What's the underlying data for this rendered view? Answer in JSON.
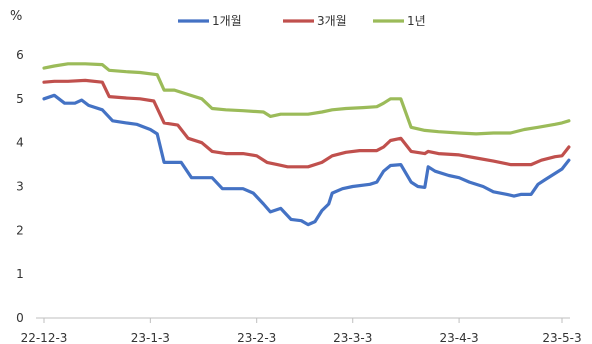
{
  "chart_data": {
    "type": "line",
    "unit_label": "%",
    "title": "",
    "xlabel": "",
    "ylabel": "",
    "ylim": [
      0,
      6
    ],
    "yticks": [
      "0",
      "1",
      "2",
      "3",
      "4",
      "5",
      "6"
    ],
    "x_tick_labels": [
      "22-12-3",
      "23-1-3",
      "23-2-3",
      "23-3-3",
      "23-4-3",
      "23-5-3"
    ],
    "x_tick_dates": [
      "2022-12-03",
      "2023-01-03",
      "2023-02-03",
      "2023-03-03",
      "2023-04-03",
      "2023-05-03"
    ],
    "grid": false,
    "legend_position": "top",
    "series": [
      {
        "name": "1개월",
        "color": "#4472c4",
        "points": [
          [
            "2022-12-03",
            5.0
          ],
          [
            "2022-12-06",
            5.08
          ],
          [
            "2022-12-09",
            4.9
          ],
          [
            "2022-12-12",
            4.9
          ],
          [
            "2022-12-14",
            4.97
          ],
          [
            "2022-12-16",
            4.85
          ],
          [
            "2022-12-20",
            4.75
          ],
          [
            "2022-12-23",
            4.5
          ],
          [
            "2022-12-27",
            4.45
          ],
          [
            "2022-12-30",
            4.42
          ],
          [
            "2023-01-03",
            4.3
          ],
          [
            "2023-01-05",
            4.2
          ],
          [
            "2023-01-07",
            3.55
          ],
          [
            "2023-01-12",
            3.55
          ],
          [
            "2023-01-15",
            3.2
          ],
          [
            "2023-01-18",
            3.2
          ],
          [
            "2023-01-21",
            3.2
          ],
          [
            "2023-01-24",
            2.95
          ],
          [
            "2023-01-30",
            2.95
          ],
          [
            "2023-02-02",
            2.85
          ],
          [
            "2023-02-05",
            2.6
          ],
          [
            "2023-02-07",
            2.42
          ],
          [
            "2023-02-10",
            2.5
          ],
          [
            "2023-02-13",
            2.25
          ],
          [
            "2023-02-16",
            2.22
          ],
          [
            "2023-02-18",
            2.13
          ],
          [
            "2023-02-20",
            2.2
          ],
          [
            "2023-02-22",
            2.45
          ],
          [
            "2023-02-24",
            2.6
          ],
          [
            "2023-02-25",
            2.85
          ],
          [
            "2023-02-28",
            2.95
          ],
          [
            "2023-03-03",
            3.0
          ],
          [
            "2023-03-08",
            3.05
          ],
          [
            "2023-03-10",
            3.1
          ],
          [
            "2023-03-12",
            3.35
          ],
          [
            "2023-03-14",
            3.48
          ],
          [
            "2023-03-17",
            3.5
          ],
          [
            "2023-03-20",
            3.1
          ],
          [
            "2023-03-22",
            3.0
          ],
          [
            "2023-03-24",
            2.98
          ],
          [
            "2023-03-25",
            3.45
          ],
          [
            "2023-03-27",
            3.35
          ],
          [
            "2023-03-31",
            3.25
          ],
          [
            "2023-04-03",
            3.2
          ],
          [
            "2023-04-06",
            3.1
          ],
          [
            "2023-04-10",
            3.0
          ],
          [
            "2023-04-13",
            2.88
          ],
          [
            "2023-04-17",
            2.82
          ],
          [
            "2023-04-19",
            2.78
          ],
          [
            "2023-04-21",
            2.82
          ],
          [
            "2023-04-24",
            2.82
          ],
          [
            "2023-04-26",
            3.05
          ],
          [
            "2023-04-28",
            3.15
          ],
          [
            "2023-05-01",
            3.3
          ],
          [
            "2023-05-03",
            3.4
          ],
          [
            "2023-05-05",
            3.6
          ]
        ]
      },
      {
        "name": "3개월",
        "color": "#c0504d",
        "points": [
          [
            "2022-12-03",
            5.38
          ],
          [
            "2022-12-06",
            5.4
          ],
          [
            "2022-12-10",
            5.4
          ],
          [
            "2022-12-15",
            5.42
          ],
          [
            "2022-12-20",
            5.38
          ],
          [
            "2022-12-22",
            5.05
          ],
          [
            "2022-12-27",
            5.02
          ],
          [
            "2022-12-31",
            5.0
          ],
          [
            "2023-01-04",
            4.95
          ],
          [
            "2023-01-07",
            4.45
          ],
          [
            "2023-01-11",
            4.4
          ],
          [
            "2023-01-14",
            4.1
          ],
          [
            "2023-01-18",
            4.0
          ],
          [
            "2023-01-21",
            3.8
          ],
          [
            "2023-01-25",
            3.75
          ],
          [
            "2023-01-30",
            3.75
          ],
          [
            "2023-02-03",
            3.7
          ],
          [
            "2023-02-06",
            3.55
          ],
          [
            "2023-02-09",
            3.5
          ],
          [
            "2023-02-12",
            3.45
          ],
          [
            "2023-02-18",
            3.45
          ],
          [
            "2023-02-22",
            3.55
          ],
          [
            "2023-02-25",
            3.7
          ],
          [
            "2023-03-01",
            3.78
          ],
          [
            "2023-03-05",
            3.82
          ],
          [
            "2023-03-10",
            3.82
          ],
          [
            "2023-03-12",
            3.9
          ],
          [
            "2023-03-14",
            4.05
          ],
          [
            "2023-03-17",
            4.1
          ],
          [
            "2023-03-20",
            3.8
          ],
          [
            "2023-03-24",
            3.75
          ],
          [
            "2023-03-25",
            3.8
          ],
          [
            "2023-03-28",
            3.75
          ],
          [
            "2023-04-03",
            3.72
          ],
          [
            "2023-04-08",
            3.65
          ],
          [
            "2023-04-13",
            3.58
          ],
          [
            "2023-04-18",
            3.5
          ],
          [
            "2023-04-24",
            3.5
          ],
          [
            "2023-04-27",
            3.6
          ],
          [
            "2023-05-01",
            3.68
          ],
          [
            "2023-05-03",
            3.7
          ],
          [
            "2023-05-05",
            3.9
          ]
        ]
      },
      {
        "name": "1년",
        "color": "#9bbb59",
        "points": [
          [
            "2022-12-03",
            5.7
          ],
          [
            "2022-12-06",
            5.75
          ],
          [
            "2022-12-10",
            5.8
          ],
          [
            "2022-12-15",
            5.8
          ],
          [
            "2022-12-20",
            5.78
          ],
          [
            "2022-12-22",
            5.65
          ],
          [
            "2022-12-27",
            5.62
          ],
          [
            "2022-12-31",
            5.6
          ],
          [
            "2023-01-05",
            5.55
          ],
          [
            "2023-01-07",
            5.2
          ],
          [
            "2023-01-10",
            5.2
          ],
          [
            "2023-01-14",
            5.1
          ],
          [
            "2023-01-18",
            5.0
          ],
          [
            "2023-01-21",
            4.78
          ],
          [
            "2023-01-25",
            4.75
          ],
          [
            "2023-01-30",
            4.73
          ],
          [
            "2023-02-05",
            4.7
          ],
          [
            "2023-02-07",
            4.6
          ],
          [
            "2023-02-10",
            4.65
          ],
          [
            "2023-02-18",
            4.65
          ],
          [
            "2023-02-22",
            4.7
          ],
          [
            "2023-02-25",
            4.75
          ],
          [
            "2023-03-01",
            4.78
          ],
          [
            "2023-03-06",
            4.8
          ],
          [
            "2023-03-10",
            4.82
          ],
          [
            "2023-03-12",
            4.9
          ],
          [
            "2023-03-14",
            5.0
          ],
          [
            "2023-03-17",
            5.0
          ],
          [
            "2023-03-20",
            4.35
          ],
          [
            "2023-03-24",
            4.28
          ],
          [
            "2023-03-28",
            4.25
          ],
          [
            "2023-04-03",
            4.22
          ],
          [
            "2023-04-08",
            4.2
          ],
          [
            "2023-04-13",
            4.22
          ],
          [
            "2023-04-18",
            4.22
          ],
          [
            "2023-04-22",
            4.3
          ],
          [
            "2023-04-26",
            4.35
          ],
          [
            "2023-05-01",
            4.42
          ],
          [
            "2023-05-03",
            4.45
          ],
          [
            "2023-05-05",
            4.5
          ]
        ]
      }
    ]
  }
}
